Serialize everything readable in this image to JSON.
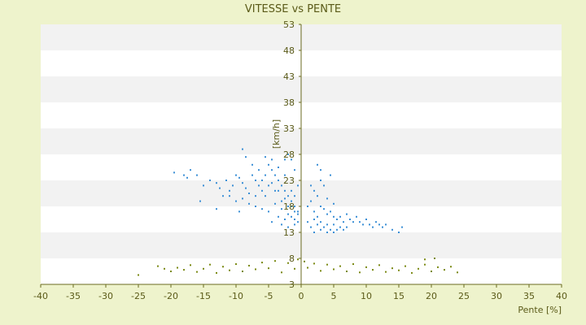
{
  "chart_data": {
    "type": "scatter",
    "title": "VITESSE vs PENTE",
    "xlabel": "Pente [%]",
    "ylabel": "[km/h]",
    "xlim": [
      -40,
      40
    ],
    "ylim": [
      3,
      53
    ],
    "x_ticks": [
      "-40",
      "-35",
      "-30",
      "-25",
      "-20",
      "-15",
      "-10",
      "-5",
      "0",
      "5",
      "10",
      "15",
      "20",
      "25",
      "30",
      "35",
      "40"
    ],
    "y_ticks": [
      "3",
      "8",
      "13",
      "18",
      "23",
      "28",
      "33",
      "38",
      "43",
      "48",
      "53"
    ],
    "y_tick_values": [
      3,
      8,
      13,
      18,
      23,
      28,
      33,
      38,
      43,
      48,
      53
    ],
    "x_tick_values": [
      -40,
      -35,
      -30,
      -25,
      -20,
      -15,
      -10,
      -5,
      0,
      5,
      10,
      15,
      20,
      25,
      30,
      35,
      40
    ],
    "grid": "horizontal bands",
    "series": [
      {
        "color": "#3b8fd6",
        "points": [
          [
            -19.5,
            24.5
          ],
          [
            -18,
            24
          ],
          [
            -17.5,
            23.5
          ],
          [
            -17,
            25
          ],
          [
            -16,
            24
          ],
          [
            -15.5,
            19
          ],
          [
            -15,
            22
          ],
          [
            -14,
            23
          ],
          [
            -13,
            22.5
          ],
          [
            -12.5,
            21.5
          ],
          [
            -12,
            20
          ],
          [
            -11.5,
            23
          ],
          [
            -11,
            21
          ],
          [
            -10.5,
            22
          ],
          [
            -10,
            24
          ],
          [
            -9.5,
            23.5
          ],
          [
            -9,
            22.5
          ],
          [
            -8.5,
            21.5
          ],
          [
            -8,
            20.5
          ],
          [
            -7.5,
            24
          ],
          [
            -7,
            23
          ],
          [
            -6.5,
            22
          ],
          [
            -6,
            21
          ],
          [
            -5.5,
            20
          ],
          [
            -5,
            26
          ],
          [
            -4.5,
            25
          ],
          [
            -4,
            24
          ],
          [
            -3.5,
            23
          ],
          [
            -3,
            22
          ],
          [
            -2.5,
            21
          ],
          [
            -2,
            20
          ],
          [
            -1.5,
            19
          ],
          [
            -1,
            18
          ],
          [
            -0.5,
            17
          ],
          [
            -9,
            29
          ],
          [
            -8.5,
            27.5
          ],
          [
            -7.5,
            26
          ],
          [
            -6.5,
            25
          ],
          [
            -5.5,
            24
          ],
          [
            -4.5,
            22.5
          ],
          [
            -3.5,
            21
          ],
          [
            -2.5,
            19.5
          ],
          [
            -1.5,
            18
          ],
          [
            -0.5,
            16.5
          ],
          [
            -10,
            19
          ],
          [
            -9,
            19.5
          ],
          [
            -8,
            18.5
          ],
          [
            -7,
            18
          ],
          [
            -6,
            17.5
          ],
          [
            -5,
            17
          ],
          [
            -4,
            18.5
          ],
          [
            -3,
            17.5
          ],
          [
            -2,
            16.5
          ],
          [
            -1,
            15.5
          ],
          [
            -13,
            17.5
          ],
          [
            -11,
            20
          ],
          [
            -9.5,
            17
          ],
          [
            -7,
            20
          ],
          [
            -6,
            23
          ],
          [
            -5,
            22
          ],
          [
            -4,
            21
          ],
          [
            -3,
            19
          ],
          [
            -2,
            18
          ],
          [
            -1,
            17
          ],
          [
            -1.5,
            21
          ],
          [
            -2.5,
            24
          ],
          [
            -3.5,
            25.5
          ],
          [
            -4.5,
            27
          ],
          [
            -5.5,
            27.5
          ],
          [
            -3,
            14.5
          ],
          [
            -2,
            14
          ],
          [
            -1,
            14.5
          ],
          [
            -0.5,
            15
          ],
          [
            -1.5,
            16
          ],
          [
            -2.5,
            15.5
          ],
          [
            -3.5,
            16
          ],
          [
            -4.5,
            15
          ],
          [
            -1,
            20
          ],
          [
            -0.5,
            22
          ],
          [
            -1,
            25
          ],
          [
            -1.5,
            27
          ],
          [
            -2,
            28
          ],
          [
            -2.5,
            27
          ]
        ]
      },
      {
        "color": "#3b8fd6",
        "points": [
          [
            1,
            18
          ],
          [
            1.5,
            19
          ],
          [
            2,
            17
          ],
          [
            2.5,
            16
          ],
          [
            3,
            18
          ],
          [
            3.5,
            17.5
          ],
          [
            4,
            16.5
          ],
          [
            4.5,
            17
          ],
          [
            5,
            16
          ],
          [
            5.5,
            15.5
          ],
          [
            6,
            16
          ],
          [
            6.5,
            15
          ],
          [
            7,
            16.5
          ],
          [
            7.5,
            15.5
          ],
          [
            8,
            15
          ],
          [
            8.5,
            16
          ],
          [
            9,
            15
          ],
          [
            9.5,
            14.5
          ],
          [
            10,
            15.5
          ],
          [
            10.5,
            14.5
          ],
          [
            11,
            14
          ],
          [
            11.5,
            15
          ],
          [
            12,
            14.5
          ],
          [
            12.5,
            14
          ],
          [
            13,
            14.5
          ],
          [
            14,
            13.5
          ],
          [
            15,
            13
          ],
          [
            15.5,
            14
          ],
          [
            1,
            15
          ],
          [
            1.5,
            14
          ],
          [
            2,
            15.5
          ],
          [
            2.5,
            14.5
          ],
          [
            3,
            15
          ],
          [
            3.5,
            14
          ],
          [
            4,
            14.5
          ],
          [
            4.5,
            13.5
          ],
          [
            5,
            14.5
          ],
          [
            5.5,
            13.5
          ],
          [
            6,
            14
          ],
          [
            6.5,
            13.5
          ],
          [
            7,
            14
          ],
          [
            2,
            13
          ],
          [
            3,
            13.5
          ],
          [
            4,
            13
          ],
          [
            5,
            13
          ],
          [
            1.5,
            22
          ],
          [
            2,
            21
          ],
          [
            2.5,
            20
          ],
          [
            3,
            23
          ],
          [
            3.5,
            22
          ],
          [
            4,
            19.5
          ],
          [
            5,
            18.5
          ],
          [
            2.5,
            26
          ],
          [
            3,
            25
          ],
          [
            4.5,
            24
          ]
        ]
      },
      {
        "color": "#7b8a14",
        "points": [
          [
            -25,
            4.8
          ],
          [
            -22,
            6.5
          ],
          [
            -21,
            6
          ],
          [
            -20,
            5.5
          ],
          [
            -19,
            6.2
          ],
          [
            -18,
            5.8
          ],
          [
            -17,
            6.7
          ],
          [
            -16,
            5.4
          ],
          [
            -15,
            6
          ],
          [
            -14,
            6.8
          ],
          [
            -13,
            5.2
          ],
          [
            -12,
            6.4
          ],
          [
            -11,
            5.7
          ],
          [
            -10,
            6.9
          ],
          [
            -9,
            5.5
          ],
          [
            -8,
            6.6
          ],
          [
            -7,
            5.9
          ],
          [
            -6,
            7.2
          ],
          [
            -5,
            6.1
          ],
          [
            -4,
            7.5
          ],
          [
            -3,
            5.3
          ],
          [
            -2,
            7.1
          ],
          [
            -1,
            6
          ],
          [
            -0.5,
            7.8
          ],
          [
            0.5,
            7.4
          ],
          [
            1,
            6.2
          ],
          [
            2,
            7
          ],
          [
            3,
            5.6
          ],
          [
            4,
            6.8
          ],
          [
            5,
            5.9
          ],
          [
            6,
            6.5
          ],
          [
            7,
            5.5
          ],
          [
            8,
            6.9
          ],
          [
            9,
            5.3
          ],
          [
            10,
            6.3
          ],
          [
            11,
            5.8
          ],
          [
            12,
            6.7
          ],
          [
            13,
            5.4
          ],
          [
            14,
            6.1
          ],
          [
            15,
            5.7
          ],
          [
            16,
            6.5
          ],
          [
            17,
            5.2
          ],
          [
            18,
            6
          ],
          [
            19,
            6.8
          ],
          [
            20,
            5.5
          ],
          [
            21,
            6.3
          ],
          [
            22,
            5.8
          ],
          [
            23,
            6.4
          ],
          [
            24,
            5.3
          ],
          [
            19,
            7.8
          ],
          [
            20.5,
            8
          ]
        ]
      }
    ]
  }
}
